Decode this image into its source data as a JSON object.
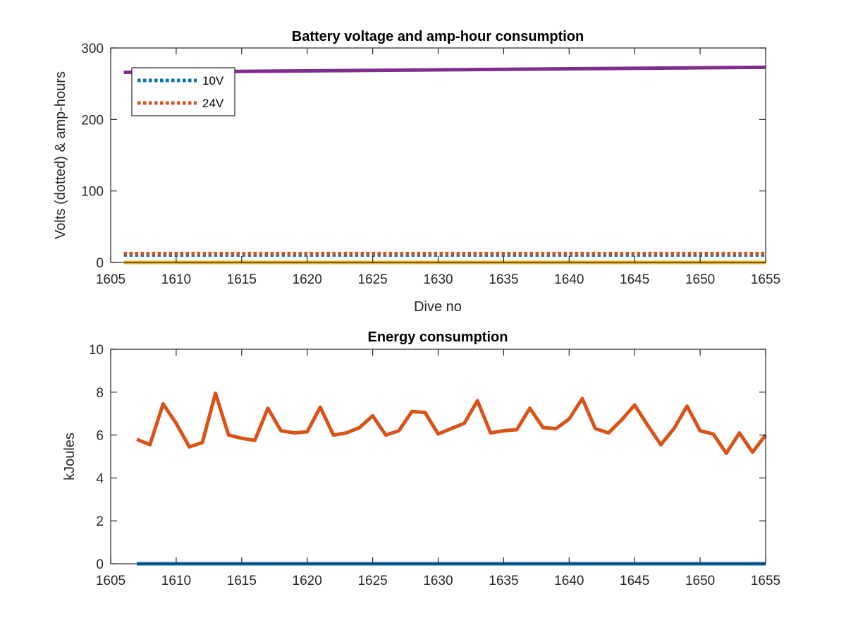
{
  "chart_data": [
    {
      "type": "line",
      "title": "Battery voltage and amp-hour consumption",
      "xlabel": "Dive no",
      "ylabel": "Volts (dotted) & amp-hours",
      "xlim": [
        1605,
        1655
      ],
      "ylim": [
        0,
        300
      ],
      "xticks": [
        1605,
        1610,
        1615,
        1620,
        1625,
        1630,
        1635,
        1640,
        1645,
        1650,
        1655
      ],
      "yticks": [
        0,
        100,
        200,
        300
      ],
      "grid": false,
      "legend": "top-left",
      "series": [
        {
          "name": "10V",
          "style": "dotted",
          "color": "#0072BD",
          "x": [
            1606,
            1655
          ],
          "values": [
            10.5,
            10.5
          ]
        },
        {
          "name": "24V",
          "style": "dotted",
          "color": "#D95319",
          "x": [
            1606,
            1655
          ],
          "values": [
            12.5,
            12.5
          ]
        },
        {
          "style": "solid",
          "color": "#EDB120",
          "x": [
            1606,
            1655
          ],
          "values": [
            0,
            0
          ]
        },
        {
          "style": "solid",
          "color": "#7E2F8E",
          "x": [
            1606,
            1655
          ],
          "values": [
            266,
            273
          ]
        }
      ]
    },
    {
      "type": "line",
      "title": "Energy consumption",
      "xlabel": "",
      "ylabel": "kJoules",
      "xlim": [
        1605,
        1655
      ],
      "ylim": [
        0,
        10
      ],
      "xticks": [
        1605,
        1610,
        1615,
        1620,
        1625,
        1630,
        1635,
        1640,
        1645,
        1650,
        1655
      ],
      "yticks": [
        0,
        2,
        4,
        6,
        8,
        10
      ],
      "grid": false,
      "series": [
        {
          "style": "solid",
          "color": "#0072BD",
          "x": [
            1607,
            1655
          ],
          "values": [
            0,
            0
          ]
        },
        {
          "style": "solid",
          "color": "#D95319",
          "x": [
            1607,
            1608,
            1609,
            1610,
            1611,
            1612,
            1613,
            1614,
            1615,
            1616,
            1617,
            1618,
            1619,
            1620,
            1621,
            1622,
            1623,
            1624,
            1625,
            1626,
            1627,
            1628,
            1629,
            1630,
            1631,
            1632,
            1633,
            1634,
            1635,
            1636,
            1637,
            1638,
            1639,
            1640,
            1641,
            1642,
            1643,
            1644,
            1645,
            1646,
            1647,
            1648,
            1649,
            1650,
            1651,
            1652,
            1653,
            1654,
            1655
          ],
          "values": [
            5.8,
            5.55,
            7.45,
            6.55,
            5.45,
            5.65,
            7.95,
            6.0,
            5.85,
            5.75,
            7.25,
            6.2,
            6.1,
            6.15,
            7.3,
            6.0,
            6.1,
            6.35,
            6.9,
            6.0,
            6.2,
            7.1,
            7.05,
            6.05,
            6.3,
            6.55,
            7.6,
            6.1,
            6.2,
            6.25,
            7.25,
            6.35,
            6.3,
            6.75,
            7.7,
            6.3,
            6.1,
            6.7,
            7.4,
            6.45,
            5.55,
            6.3,
            7.35,
            6.2,
            6.05,
            5.15,
            6.1,
            5.2,
            6.0
          ]
        }
      ]
    }
  ]
}
